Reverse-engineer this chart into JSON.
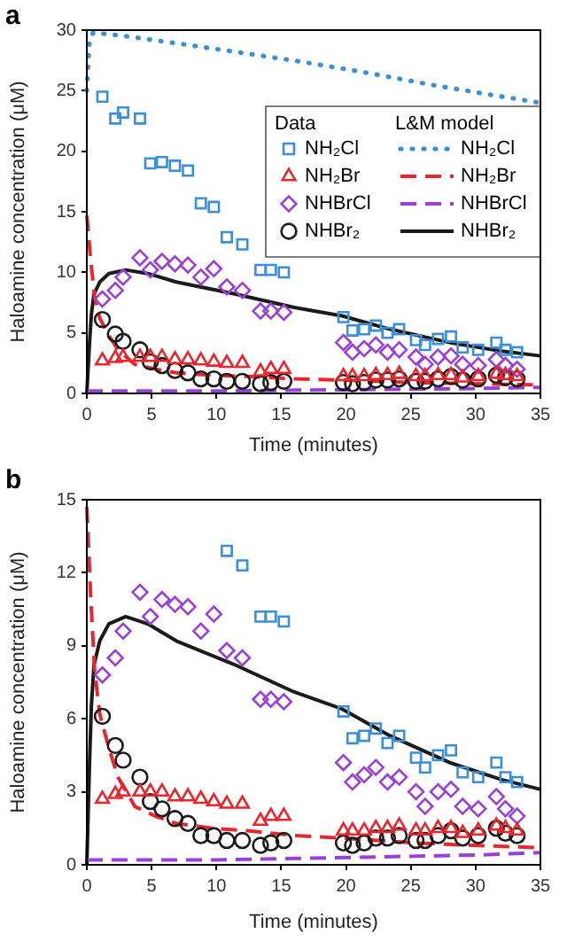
{
  "chart_data": [
    {
      "type": "scatter",
      "title": "a",
      "xlabel": "Time (minutes)",
      "ylabel": "Haloamine concentration (μM)",
      "xlim": [
        0,
        35
      ],
      "xticks": [
        0,
        5,
        10,
        15,
        20,
        25,
        30,
        35
      ],
      "ylim": [
        0,
        30
      ],
      "yticks": [
        0,
        5,
        10,
        15,
        20,
        25,
        30
      ],
      "grid": false,
      "legend": "top right",
      "annotations": [
        "Data",
        "L&M model"
      ],
      "series": [
        {
          "name": "NH₂Cl",
          "type": "scatter",
          "marker": "square",
          "color": "#3a8fd8",
          "x": [
            1.2,
            2.2,
            2.8,
            4.1,
            4.9,
            5.8,
            6.8,
            7.8,
            8.8,
            9.8,
            10.8,
            12.0,
            13.4,
            14.2,
            15.2,
            19.8,
            20.5,
            21.4,
            22.3,
            23.2,
            24.1,
            25.4,
            26.1,
            27.1,
            28.1,
            29.0,
            30.2,
            31.6,
            32.3,
            33.2
          ],
          "values": [
            24.5,
            22.7,
            23.2,
            22.7,
            19.0,
            19.1,
            18.8,
            18.4,
            15.7,
            15.4,
            12.9,
            12.3,
            10.2,
            10.2,
            10.0,
            6.3,
            5.2,
            5.3,
            5.6,
            5.0,
            5.3,
            4.4,
            4.0,
            4.5,
            4.7,
            3.8,
            3.6,
            4.2,
            3.6,
            3.4
          ]
        },
        {
          "name": "NH₂Br",
          "type": "scatter",
          "marker": "triangle",
          "color": "#e8262b",
          "x": [
            1.2,
            2.2,
            2.8,
            4.1,
            4.9,
            5.8,
            6.8,
            7.8,
            8.8,
            9.8,
            10.8,
            12.0,
            13.4,
            14.2,
            15.2,
            19.8,
            20.5,
            21.4,
            22.3,
            23.2,
            24.1,
            25.4,
            26.1,
            27.1,
            28.1,
            29.0,
            30.2,
            31.6,
            32.3,
            33.2
          ],
          "values": [
            2.7,
            2.9,
            3.0,
            3.0,
            3.0,
            3.0,
            2.8,
            2.8,
            2.7,
            2.6,
            2.5,
            2.5,
            1.8,
            2.0,
            2.0,
            1.4,
            1.4,
            1.4,
            1.5,
            1.5,
            1.6,
            1.4,
            1.4,
            1.5,
            1.5,
            1.3,
            1.4,
            1.6,
            1.5,
            1.4
          ]
        },
        {
          "name": "NHBrCl",
          "type": "scatter",
          "marker": "diamond",
          "color": "#9b3fd9",
          "x": [
            1.2,
            2.2,
            2.8,
            4.1,
            4.9,
            5.8,
            6.8,
            7.8,
            8.8,
            9.8,
            10.8,
            12.0,
            13.4,
            14.2,
            15.2,
            19.8,
            20.5,
            21.4,
            22.3,
            23.2,
            24.1,
            25.4,
            26.1,
            27.1,
            28.1,
            29.0,
            30.2,
            31.6,
            32.3,
            33.2
          ],
          "values": [
            7.8,
            8.5,
            9.6,
            11.2,
            10.2,
            10.9,
            10.7,
            10.6,
            9.6,
            10.3,
            8.8,
            8.5,
            6.8,
            6.8,
            6.7,
            4.2,
            3.4,
            3.7,
            4.0,
            3.4,
            3.6,
            3.0,
            2.4,
            3.0,
            3.1,
            2.4,
            2.3,
            2.8,
            2.3,
            2.0
          ]
        },
        {
          "name": "NHBr₂",
          "type": "scatter",
          "marker": "circle",
          "color": "#1a1a1a",
          "x": [
            1.2,
            2.2,
            2.8,
            4.1,
            4.9,
            5.8,
            6.8,
            7.8,
            8.8,
            9.8,
            10.8,
            12.0,
            13.4,
            14.2,
            15.2,
            19.8,
            20.5,
            21.4,
            22.3,
            23.2,
            24.1,
            25.4,
            26.1,
            27.1,
            28.1,
            29.0,
            30.2,
            31.6,
            32.3,
            33.2
          ],
          "values": [
            6.1,
            4.9,
            4.3,
            3.6,
            2.6,
            2.3,
            1.9,
            1.7,
            1.2,
            1.2,
            1.0,
            1.0,
            0.8,
            0.9,
            1.0,
            0.9,
            0.8,
            0.9,
            1.1,
            1.1,
            1.2,
            1.0,
            1.0,
            1.2,
            1.4,
            1.1,
            1.2,
            1.5,
            1.3,
            1.2
          ]
        },
        {
          "name": "NH₂Cl",
          "type": "line",
          "marker": "none",
          "line_style": "dotted",
          "color": "#3a8fd8",
          "x": [
            0,
            0.2,
            0.5,
            3,
            7,
            11.5,
            16.5,
            21.5,
            26.5,
            31.5,
            35
          ],
          "values": [
            25,
            29,
            29.8,
            29.5,
            28.9,
            28.2,
            27.4,
            26.5,
            25.5,
            24.6,
            24.0
          ]
        },
        {
          "name": "NH₂Br",
          "type": "line",
          "marker": "none",
          "line_style": "dashed",
          "color": "#e8262b",
          "x": [
            0,
            0.3,
            0.6,
            1,
            1.7,
            2.4,
            3.7,
            5.3,
            6.9,
            9.7,
            12.4,
            16,
            19.7,
            25.2,
            29.8,
            35
          ],
          "values": [
            14.7,
            11,
            8,
            6.2,
            4.8,
            3.6,
            2.4,
            2.0,
            1.7,
            1.5,
            1.4,
            1.2,
            1.1,
            0.9,
            0.8,
            0.7
          ]
        },
        {
          "name": "NHBrCl",
          "type": "line",
          "marker": "none",
          "line_style": "dashed",
          "color": "#9b3fd9",
          "x": [
            0,
            10,
            20,
            30,
            35
          ],
          "values": [
            0.2,
            0.2,
            0.3,
            0.4,
            0.5
          ]
        },
        {
          "name": "NHBr₂",
          "type": "line",
          "marker": "none",
          "line_style": "solid",
          "color": "#1a1a1a",
          "x": [
            0,
            0.2,
            0.35,
            0.55,
            1,
            1.7,
            3,
            4.7,
            6.9,
            11.5,
            16,
            19.7,
            23.4,
            28,
            32,
            35
          ],
          "values": [
            0,
            4,
            6.5,
            8.2,
            9.2,
            9.9,
            10.2,
            9.9,
            9.2,
            8.2,
            7.1,
            6.4,
            5.3,
            4.2,
            3.5,
            3.1
          ]
        }
      ]
    },
    {
      "type": "scatter",
      "title": "b",
      "xlabel": "Time (minutes)",
      "ylabel": "Haloamine concentration (μM)",
      "xlim": [
        0,
        35
      ],
      "xticks": [
        0,
        5,
        10,
        15,
        20,
        25,
        30,
        35
      ],
      "ylim": [
        0,
        15
      ],
      "yticks": [
        0,
        3,
        6,
        9,
        12,
        15
      ],
      "grid": false,
      "series": [
        {
          "type": "scatter",
          "marker": "square",
          "color": "#3a8fd8",
          "x": [
            10.8,
            12.0,
            13.4,
            14.2,
            15.2,
            19.8,
            20.5,
            21.4,
            22.3,
            23.2,
            24.1,
            25.4,
            26.1,
            27.1,
            28.1,
            29.0,
            30.2,
            31.6,
            32.3,
            33.2
          ],
          "values": [
            12.9,
            12.3,
            10.2,
            10.2,
            10.0,
            6.3,
            5.2,
            5.3,
            5.6,
            5.0,
            5.3,
            4.4,
            4.0,
            4.5,
            4.7,
            3.8,
            3.6,
            4.2,
            3.6,
            3.4
          ]
        },
        {
          "type": "scatter",
          "marker": "triangle",
          "color": "#e8262b",
          "x": [
            1.2,
            2.2,
            2.8,
            4.1,
            4.9,
            5.8,
            6.8,
            7.8,
            8.8,
            9.8,
            10.8,
            12.0,
            13.4,
            14.2,
            15.2,
            19.8,
            20.5,
            21.4,
            22.3,
            23.2,
            24.1,
            25.4,
            26.1,
            27.1,
            28.1,
            29.0,
            30.2,
            31.6,
            32.3,
            33.2
          ],
          "values": [
            2.7,
            2.9,
            3.0,
            3.0,
            3.0,
            3.0,
            2.8,
            2.8,
            2.7,
            2.6,
            2.5,
            2.5,
            1.8,
            2.0,
            2.0,
            1.4,
            1.4,
            1.4,
            1.5,
            1.5,
            1.6,
            1.4,
            1.4,
            1.5,
            1.5,
            1.3,
            1.4,
            1.6,
            1.5,
            1.4
          ]
        },
        {
          "type": "scatter",
          "marker": "diamond",
          "color": "#9b3fd9",
          "x": [
            1.2,
            2.2,
            2.8,
            4.1,
            4.9,
            5.8,
            6.8,
            7.8,
            8.8,
            9.8,
            10.8,
            12.0,
            13.4,
            14.2,
            15.2,
            19.8,
            20.5,
            21.4,
            22.3,
            23.2,
            24.1,
            25.4,
            26.1,
            27.1,
            28.1,
            29.0,
            30.2,
            31.6,
            32.3,
            33.2
          ],
          "values": [
            7.8,
            8.5,
            9.6,
            11.2,
            10.2,
            10.9,
            10.7,
            10.6,
            9.6,
            10.3,
            8.8,
            8.5,
            6.8,
            6.8,
            6.7,
            4.2,
            3.4,
            3.7,
            4.0,
            3.4,
            3.6,
            3.0,
            2.4,
            3.0,
            3.1,
            2.4,
            2.3,
            2.8,
            2.3,
            2.0
          ]
        },
        {
          "type": "scatter",
          "marker": "circle",
          "color": "#1a1a1a",
          "x": [
            1.2,
            2.2,
            2.8,
            4.1,
            4.9,
            5.8,
            6.8,
            7.8,
            8.8,
            9.8,
            10.8,
            12.0,
            13.4,
            14.2,
            15.2,
            19.8,
            20.5,
            21.4,
            22.3,
            23.2,
            24.1,
            25.4,
            26.1,
            27.1,
            28.1,
            29.0,
            30.2,
            31.6,
            32.3,
            33.2
          ],
          "values": [
            6.1,
            4.9,
            4.3,
            3.6,
            2.6,
            2.3,
            1.9,
            1.7,
            1.2,
            1.2,
            1.0,
            1.0,
            0.8,
            0.9,
            1.0,
            0.9,
            0.8,
            0.9,
            1.1,
            1.1,
            1.2,
            1.0,
            1.0,
            1.2,
            1.4,
            1.1,
            1.2,
            1.5,
            1.3,
            1.2
          ]
        },
        {
          "type": "line",
          "marker": "none",
          "line_style": "dashed",
          "color": "#e8262b",
          "x": [
            0,
            0.3,
            0.6,
            1,
            1.7,
            2.4,
            3.7,
            5.3,
            6.9,
            9.7,
            12.4,
            16,
            19.7,
            25.2,
            29.8,
            35
          ],
          "values": [
            14.7,
            11,
            8,
            6.2,
            4.8,
            3.6,
            2.4,
            2.0,
            1.7,
            1.5,
            1.4,
            1.2,
            1.1,
            0.9,
            0.8,
            0.7
          ]
        },
        {
          "type": "line",
          "marker": "none",
          "line_style": "dashed",
          "color": "#9b3fd9",
          "x": [
            0,
            10,
            20,
            30,
            35
          ],
          "values": [
            0.2,
            0.2,
            0.3,
            0.4,
            0.5
          ]
        },
        {
          "type": "line",
          "marker": "none",
          "line_style": "solid",
          "color": "#1a1a1a",
          "x": [
            0,
            0.2,
            0.35,
            0.55,
            1,
            1.7,
            3,
            4.7,
            6.9,
            11.5,
            16,
            19.7,
            23.4,
            28,
            32,
            35
          ],
          "values": [
            0,
            4,
            6.5,
            8.2,
            9.2,
            9.9,
            10.2,
            9.9,
            9.2,
            8.2,
            7.1,
            6.4,
            5.3,
            4.2,
            3.5,
            3.1
          ]
        }
      ]
    }
  ]
}
